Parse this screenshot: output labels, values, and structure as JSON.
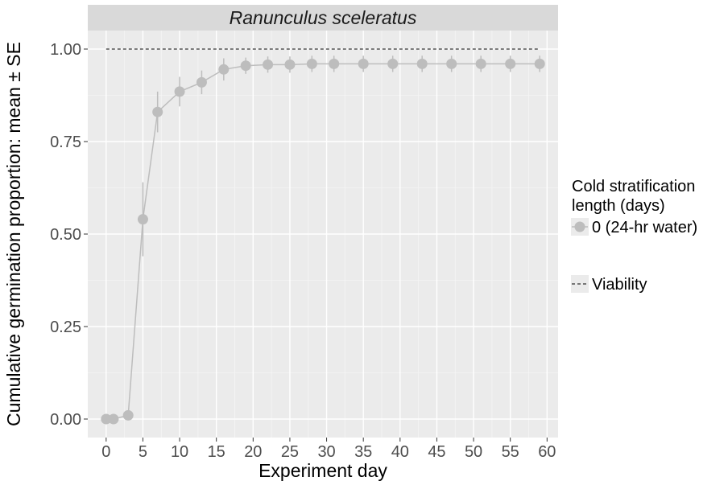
{
  "chart_data": {
    "type": "line",
    "facet_title": "Ranunculus sceleratus",
    "xlabel": "Experiment day",
    "ylabel": "Cumulative germination proportion: mean ± SE",
    "xlim": [
      -2.5,
      61.5
    ],
    "ylim": [
      -0.05,
      1.05
    ],
    "x_ticks": [
      0,
      5,
      10,
      15,
      20,
      25,
      30,
      35,
      40,
      45,
      50,
      55,
      60
    ],
    "x_tick_labels": [
      "0",
      "5",
      "10",
      "15",
      "20",
      "25",
      "30",
      "35",
      "40",
      "45",
      "50",
      "55",
      "60"
    ],
    "y_ticks": [
      0,
      0.25,
      0.5,
      0.75,
      1.0
    ],
    "y_tick_labels": [
      "0.00",
      "0.25",
      "0.50",
      "0.75",
      "1.00"
    ],
    "grid": true,
    "series": [
      {
        "name": "0 (24-hr water)",
        "color": "#bdbdbd",
        "x": [
          0,
          1,
          3,
          5,
          7,
          10,
          13,
          16,
          19,
          22,
          25,
          28,
          31,
          35,
          39,
          43,
          47,
          51,
          55,
          59
        ],
        "y": [
          0.0,
          0.0,
          0.01,
          0.54,
          0.83,
          0.885,
          0.91,
          0.945,
          0.955,
          0.958,
          0.958,
          0.96,
          0.96,
          0.96,
          0.96,
          0.96,
          0.96,
          0.96,
          0.96,
          0.96
        ],
        "se": [
          0.0,
          0.0,
          0.005,
          0.1,
          0.055,
          0.04,
          0.032,
          0.03,
          0.022,
          0.022,
          0.022,
          0.022,
          0.022,
          0.022,
          0.022,
          0.022,
          0.022,
          0.022,
          0.022,
          0.022
        ]
      }
    ],
    "reference_lines": [
      {
        "name": "Viability",
        "style": "dashed",
        "color": "#000000",
        "y": 1.0,
        "x_start": 0,
        "x_end": 59
      }
    ],
    "legend": {
      "placement": "right",
      "title": "Cold stratification length (days)",
      "title_lines": [
        "Cold stratification",
        "length (days)"
      ],
      "series_label": "0 (24-hr water)",
      "reference_label": "Viability"
    }
  }
}
